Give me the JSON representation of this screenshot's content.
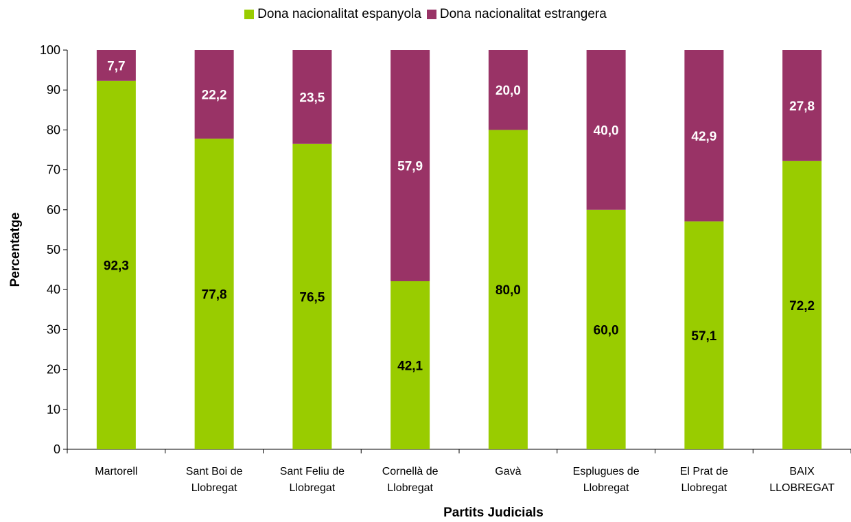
{
  "chart_data": {
    "type": "bar",
    "stacked": true,
    "categories": [
      [
        "Martorell"
      ],
      [
        "Sant Boi de",
        "Llobregat"
      ],
      [
        "Sant Feliu de",
        "Llobregat"
      ],
      [
        "Cornellà de",
        "Llobregat"
      ],
      [
        "Gavà"
      ],
      [
        "Esplugues de",
        "Llobregat"
      ],
      [
        "El Prat de",
        "Llobregat"
      ],
      [
        "BAIX",
        "LLOBREGAT"
      ]
    ],
    "series": [
      {
        "name": "Dona nacionalitat espanyola",
        "color": "#99cc00",
        "values": [
          92.3,
          77.8,
          76.5,
          42.1,
          80.0,
          60.0,
          57.1,
          72.2
        ],
        "labels": [
          "92,3",
          "77,8",
          "76,5",
          "42,1",
          "80,0",
          "60,0",
          "57,1",
          "72,2"
        ]
      },
      {
        "name": "Dona nacionalitat estrangera",
        "color": "#993366",
        "values": [
          7.7,
          22.2,
          23.5,
          57.9,
          20.0,
          40.0,
          42.9,
          27.8
        ],
        "labels": [
          "7,7",
          "22,2",
          "23,5",
          "57,9",
          "20,0",
          "40,0",
          "42,9",
          "27,8"
        ]
      }
    ],
    "xlabel": "Partits Judicials",
    "ylabel": "Percentatge",
    "ylim": [
      0,
      100
    ],
    "yticks": [
      0,
      10,
      20,
      30,
      40,
      50,
      60,
      70,
      80,
      90,
      100
    ],
    "grid": false,
    "legend_position": "top-center"
  }
}
